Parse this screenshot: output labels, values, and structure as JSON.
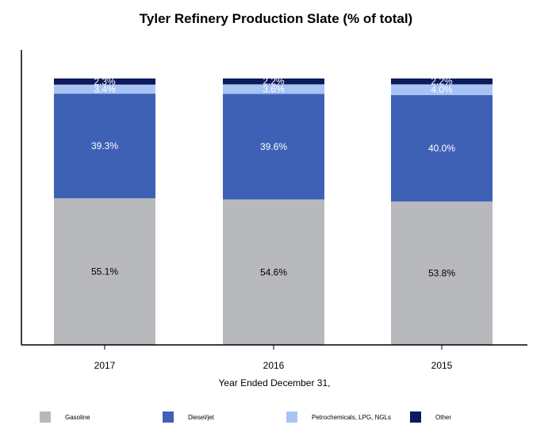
{
  "chart_data": {
    "type": "bar",
    "stacked": true,
    "title": "Tyler Refinery Production Slate (% of total)",
    "xlabel": "Year Ended December 31,",
    "ylabel": "",
    "ylim": [
      0,
      100
    ],
    "categories": [
      "2017",
      "2016",
      "2015"
    ],
    "series": [
      {
        "name": "Gasoline",
        "values": [
          55.1,
          54.6,
          53.8
        ],
        "color": "#b8b9bd",
        "labels": [
          "55.1%",
          "54.6%",
          "53.8%"
        ],
        "label_color": "#000000"
      },
      {
        "name": "Diesel/jet",
        "values": [
          39.3,
          39.6,
          40.0
        ],
        "color": "#3f61b5",
        "labels": [
          "39.3%",
          "39.6%",
          "40.0%"
        ],
        "label_color": "#ffffff"
      },
      {
        "name": "Petrochemicals, LPG, NGLs",
        "values": [
          3.4,
          3.6,
          4.0
        ],
        "color": "#a8c4f4",
        "labels": [
          "3.4%",
          "3.6%",
          "4.0%"
        ],
        "label_color": "#ffffff"
      },
      {
        "name": "Other",
        "values": [
          2.3,
          2.2,
          2.2
        ],
        "color": "#0d1a5c",
        "labels": [
          "2.3%",
          "2.2%",
          "2.2%"
        ],
        "label_color": "#ffffff"
      }
    ],
    "legend": "bottom",
    "grid": false
  }
}
